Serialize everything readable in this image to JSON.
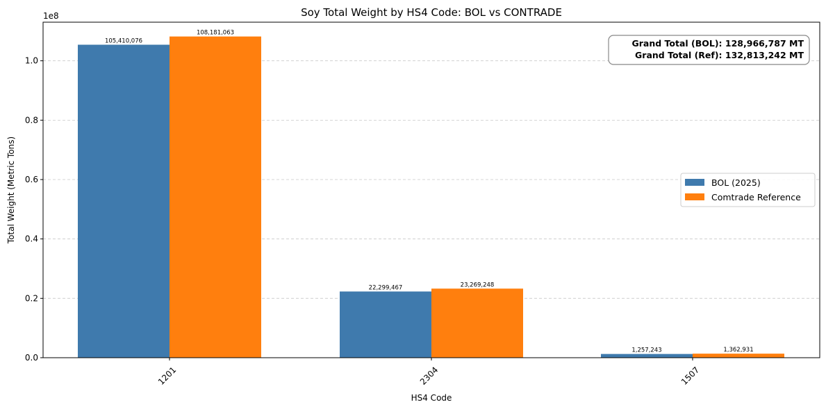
{
  "chart_data": {
    "type": "bar",
    "title": "Soy Total Weight by HS4 Code: BOL vs CONTRADE",
    "xlabel": "HS4 Code",
    "ylabel": "Total Weight (Metric Tons)",
    "categories": [
      "1201",
      "2304",
      "1507"
    ],
    "series": [
      {
        "name": "BOL (2025)",
        "color": "#3f7aad",
        "values": [
          105410076,
          22299467,
          1257243
        ],
        "labels": [
          "105,410,076",
          "22,299,467",
          "1,257,243"
        ]
      },
      {
        "name": "Comtrade Reference",
        "color": "#ff7f0e",
        "values": [
          108181063,
          23269248,
          1362931
        ],
        "labels": [
          "108,181,063",
          "23,269,248",
          "1,362,931"
        ]
      }
    ],
    "ylim": [
      0,
      113000000
    ],
    "yticks": [
      0,
      20000000,
      40000000,
      60000000,
      80000000,
      100000000
    ],
    "ytick_labels": [
      "0.0",
      "0.2",
      "0.4",
      "0.6",
      "0.8",
      "1.0"
    ],
    "y_offset_label": "1e8",
    "grid": "y, dashed",
    "legend_position": "center-right",
    "xtick_rotation": 45,
    "annotation": {
      "lines": [
        "Grand Total (BOL): 128,966,787 MT",
        "Grand Total (Ref): 132,813,242 MT"
      ],
      "position": "top-right"
    }
  }
}
